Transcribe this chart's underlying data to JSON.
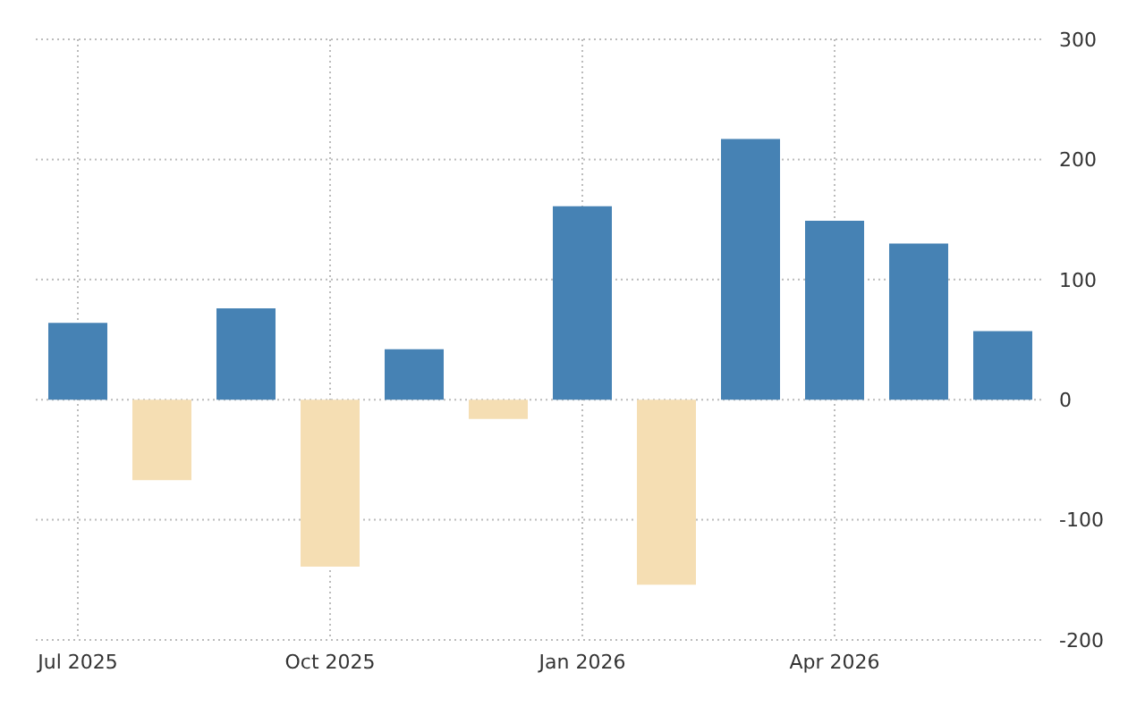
{
  "chart_data": {
    "type": "bar",
    "categories": [
      "Jul 2025",
      null,
      null,
      "Oct 2025",
      null,
      null,
      "Jan 2026",
      null,
      null,
      "Apr 2026",
      null,
      null
    ],
    "values": [
      64,
      -67,
      76,
      -139,
      42,
      -16,
      161,
      -154,
      217,
      149,
      130,
      57
    ],
    "colors": [
      "#4682b4",
      "#f5deb3",
      "#4682b4",
      "#f5deb3",
      "#4682b4",
      "#f5deb3",
      "#4682b4",
      "#f5deb3",
      "#4682b4",
      "#4682b4",
      "#4682b4",
      "#4682b4"
    ],
    "ylim": [
      -200,
      300
    ],
    "yticks": [
      -200,
      -100,
      0,
      100,
      200,
      300
    ],
    "grid": true
  }
}
